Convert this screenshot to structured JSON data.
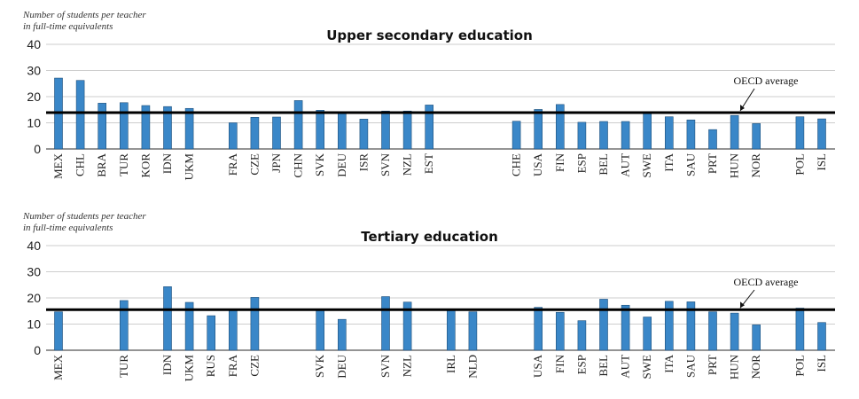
{
  "chart_data": [
    {
      "type": "bar",
      "title": "Upper secondary education",
      "ylabel": "Number of students per teacher\nin full-time equivalents",
      "ylim": [
        0,
        40
      ],
      "yticks": [
        0,
        10,
        20,
        30,
        40
      ],
      "grid": true,
      "bar_color": "#3a87c8",
      "reference_line": {
        "label": "OECD average",
        "value": 13.9
      },
      "slots": [
        {
          "category": "MEX",
          "value": 27.1
        },
        {
          "category": "CHL",
          "value": 26.2
        },
        {
          "category": "BRA",
          "value": 17.5
        },
        {
          "category": "TUR",
          "value": 17.7
        },
        {
          "category": "KOR",
          "value": 16.6
        },
        {
          "category": "IDN",
          "value": 16.2
        },
        {
          "category": "UKM",
          "value": 15.5
        },
        {
          "category": "",
          "value": null
        },
        {
          "category": "FRA",
          "value": 10.0
        },
        {
          "category": "CZE",
          "value": 12.1
        },
        {
          "category": "JPN",
          "value": 12.2
        },
        {
          "category": "CHN",
          "value": 18.5
        },
        {
          "category": "SVK",
          "value": 14.8
        },
        {
          "category": "DEU",
          "value": 13.9
        },
        {
          "category": "ISR",
          "value": 11.4
        },
        {
          "category": "SVN",
          "value": 14.5
        },
        {
          "category": "NZL",
          "value": 14.5
        },
        {
          "category": "EST",
          "value": 16.8
        },
        {
          "category": "",
          "value": null
        },
        {
          "category": "",
          "value": null
        },
        {
          "category": "",
          "value": null
        },
        {
          "category": "CHE",
          "value": 10.6
        },
        {
          "category": "USA",
          "value": 15.1
        },
        {
          "category": "FIN",
          "value": 17.0
        },
        {
          "category": "ESP",
          "value": 10.2
        },
        {
          "category": "BEL",
          "value": 10.5
        },
        {
          "category": "AUT",
          "value": 10.5
        },
        {
          "category": "SWE",
          "value": 13.7
        },
        {
          "category": "ITA",
          "value": 12.3
        },
        {
          "category": "SAU",
          "value": 11.1
        },
        {
          "category": "PRT",
          "value": 7.4
        },
        {
          "category": "HUN",
          "value": 12.8
        },
        {
          "category": "NOR",
          "value": 9.7
        },
        {
          "category": "",
          "value": null
        },
        {
          "category": "POL",
          "value": 12.3
        },
        {
          "category": "ISL",
          "value": 11.5
        }
      ]
    },
    {
      "type": "bar",
      "title": "Tertiary education",
      "ylabel": "Number of students per teacher\nin full-time equivalents",
      "ylim": [
        0,
        40
      ],
      "yticks": [
        0,
        10,
        20,
        30,
        40
      ],
      "grid": true,
      "bar_color": "#3a87c8",
      "reference_line": {
        "label": "OECD average",
        "value": 15.5
      },
      "slots": [
        {
          "category": "MEX",
          "value": 14.7
        },
        {
          "category": "",
          "value": null
        },
        {
          "category": "",
          "value": null
        },
        {
          "category": "TUR",
          "value": 19.0
        },
        {
          "category": "",
          "value": null
        },
        {
          "category": "IDN",
          "value": 24.3
        },
        {
          "category": "UKM",
          "value": 18.3
        },
        {
          "category": "RUS",
          "value": 13.2
        },
        {
          "category": "FRA",
          "value": 15.8
        },
        {
          "category": "CZE",
          "value": 20.2
        },
        {
          "category": "",
          "value": null
        },
        {
          "category": "",
          "value": null
        },
        {
          "category": "SVK",
          "value": 15.2
        },
        {
          "category": "DEU",
          "value": 11.8
        },
        {
          "category": "",
          "value": null
        },
        {
          "category": "SVN",
          "value": 20.5
        },
        {
          "category": "NZL",
          "value": 18.4
        },
        {
          "category": "",
          "value": null
        },
        {
          "category": "IRL",
          "value": 15.5
        },
        {
          "category": "NLD",
          "value": 14.7
        },
        {
          "category": "",
          "value": null
        },
        {
          "category": "",
          "value": null
        },
        {
          "category": "USA",
          "value": 16.4
        },
        {
          "category": "FIN",
          "value": 14.5
        },
        {
          "category": "ESP",
          "value": 11.3
        },
        {
          "category": "BEL",
          "value": 19.5
        },
        {
          "category": "AUT",
          "value": 17.2
        },
        {
          "category": "SWE",
          "value": 12.7
        },
        {
          "category": "ITA",
          "value": 18.7
        },
        {
          "category": "SAU",
          "value": 18.5
        },
        {
          "category": "PRT",
          "value": 14.7
        },
        {
          "category": "HUN",
          "value": 14.2
        },
        {
          "category": "NOR",
          "value": 9.7
        },
        {
          "category": "",
          "value": null
        },
        {
          "category": "POL",
          "value": 16.1
        },
        {
          "category": "ISL",
          "value": 10.6
        }
      ]
    }
  ]
}
